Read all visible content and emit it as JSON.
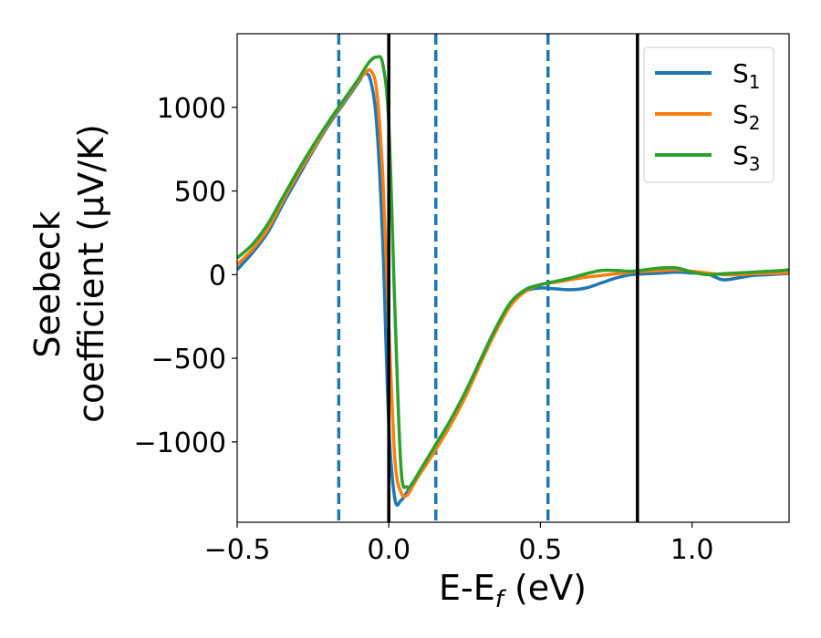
{
  "chart_data": {
    "type": "line",
    "xlabel": {
      "main": "E-E",
      "sub": "f",
      "rest": " (eV)"
    },
    "ylabel": {
      "line1": "Seebeck",
      "line2": "coefficient  (μV/K)"
    },
    "xlim": [
      -0.5,
      1.32
    ],
    "ylim": [
      -1480,
      1440
    ],
    "xticks": [
      {
        "value": -0.5,
        "label": "−0.5"
      },
      {
        "value": 0.0,
        "label": "0.0"
      },
      {
        "value": 0.5,
        "label": "0.5"
      },
      {
        "value": 1.0,
        "label": "1.0"
      }
    ],
    "yticks": [
      {
        "value": -1000,
        "label": "−1000"
      },
      {
        "value": -500,
        "label": "−500"
      },
      {
        "value": 0,
        "label": "0"
      },
      {
        "value": 500,
        "label": "500"
      },
      {
        "value": 1000,
        "label": "1000"
      }
    ],
    "vlines_solid": [
      0.0,
      0.82
    ],
    "vlines_dashed": [
      -0.165,
      0.155,
      0.525
    ],
    "legend_position": "top-right",
    "series": [
      {
        "name": "S",
        "sub": "1",
        "color": "#1f77b4",
        "x": [
          -0.5,
          -0.45,
          -0.4,
          -0.35,
          -0.3,
          -0.25,
          -0.2,
          -0.15,
          -0.1,
          -0.08,
          -0.06,
          -0.04,
          -0.02,
          0.0,
          0.02,
          0.04,
          0.06,
          0.08,
          0.1,
          0.15,
          0.2,
          0.25,
          0.3,
          0.35,
          0.4,
          0.45,
          0.5,
          0.55,
          0.6,
          0.65,
          0.7,
          0.75,
          0.8,
          0.85,
          0.9,
          0.95,
          1.0,
          1.05,
          1.1,
          1.15,
          1.2,
          1.25,
          1.3,
          1.32
        ],
        "y": [
          30,
          130,
          250,
          420,
          580,
          740,
          890,
          1020,
          1150,
          1200,
          1160,
          900,
          200,
          -900,
          -1340,
          -1350,
          -1300,
          -1240,
          -1190,
          -1050,
          -900,
          -720,
          -520,
          -330,
          -180,
          -100,
          -80,
          -85,
          -90,
          -80,
          -50,
          -20,
          0,
          5,
          10,
          15,
          10,
          5,
          -30,
          -20,
          -5,
          0,
          5,
          8
        ]
      },
      {
        "name": "S",
        "sub": "2",
        "color": "#ff7f0e",
        "x": [
          -0.5,
          -0.45,
          -0.4,
          -0.35,
          -0.3,
          -0.25,
          -0.2,
          -0.15,
          -0.1,
          -0.08,
          -0.06,
          -0.04,
          -0.02,
          0.0,
          0.02,
          0.04,
          0.06,
          0.08,
          0.1,
          0.15,
          0.2,
          0.25,
          0.3,
          0.35,
          0.4,
          0.45,
          0.5,
          0.55,
          0.6,
          0.65,
          0.7,
          0.75,
          0.8,
          0.85,
          0.9,
          0.95,
          1.0,
          1.05,
          1.1,
          1.15,
          1.2,
          1.25,
          1.3,
          1.32
        ],
        "y": [
          60,
          150,
          270,
          440,
          600,
          750,
          900,
          1030,
          1160,
          1200,
          1220,
          1100,
          600,
          -300,
          -1100,
          -1300,
          -1320,
          -1260,
          -1200,
          -1060,
          -910,
          -740,
          -540,
          -350,
          -190,
          -100,
          -60,
          -45,
          -30,
          -15,
          -5,
          5,
          15,
          20,
          25,
          30,
          20,
          10,
          0,
          0,
          5,
          8,
          10,
          12
        ]
      },
      {
        "name": "S",
        "sub": "3",
        "color": "#2ca02c",
        "x": [
          -0.5,
          -0.45,
          -0.4,
          -0.35,
          -0.3,
          -0.25,
          -0.2,
          -0.15,
          -0.1,
          -0.08,
          -0.06,
          -0.04,
          -0.02,
          0.0,
          0.02,
          0.04,
          0.06,
          0.08,
          0.1,
          0.15,
          0.2,
          0.25,
          0.3,
          0.35,
          0.4,
          0.45,
          0.5,
          0.55,
          0.6,
          0.65,
          0.7,
          0.75,
          0.8,
          0.85,
          0.9,
          0.95,
          1.0,
          1.05,
          1.1,
          1.15,
          1.2,
          1.25,
          1.3,
          1.32
        ],
        "y": [
          100,
          180,
          300,
          460,
          620,
          770,
          910,
          1040,
          1170,
          1230,
          1280,
          1300,
          1260,
          900,
          -200,
          -1150,
          -1270,
          -1240,
          -1180,
          -1030,
          -880,
          -710,
          -520,
          -330,
          -170,
          -90,
          -60,
          -40,
          -20,
          5,
          25,
          25,
          20,
          30,
          40,
          40,
          15,
          0,
          5,
          10,
          15,
          20,
          25,
          30
        ]
      }
    ]
  }
}
